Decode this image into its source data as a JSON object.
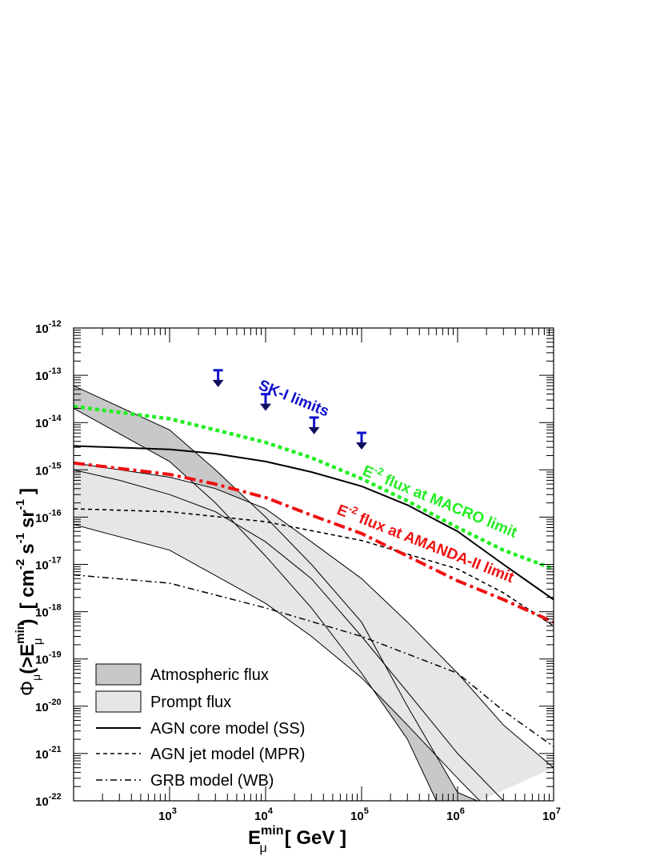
{
  "chart_data": {
    "type": "line",
    "xscale": "log",
    "yscale": "log",
    "xlim": [
      100,
      10000000
    ],
    "ylim": [
      1e-22,
      1e-12
    ],
    "xlabel": {
      "main": "E",
      "sup": "min",
      "sub": "μ",
      "unit": "[ GeV ]"
    },
    "ylabel": {
      "phi": "Φ",
      "phi_sub": "μ",
      "open": "(>E",
      "sup": "min",
      "sub": "μ",
      "close": ")",
      "units": "[ cm",
      "u_sup1": "-2",
      "s": "s",
      "u_sup2": "-1",
      "sr": "sr",
      "u_sup3": "-1",
      "end": "]"
    },
    "x_ticks": [
      {
        "base": "10",
        "exp": "3",
        "value": 1000
      },
      {
        "base": "10",
        "exp": "4",
        "value": 10000
      },
      {
        "base": "10",
        "exp": "5",
        "value": 100000
      },
      {
        "base": "10",
        "exp": "6",
        "value": 1000000
      },
      {
        "base": "10",
        "exp": "7",
        "value": 10000000
      }
    ],
    "y_ticks": [
      {
        "base": "10",
        "exp": "-12",
        "value": -12
      },
      {
        "base": "10",
        "exp": "-13",
        "value": -13
      },
      {
        "base": "10",
        "exp": "-14",
        "value": -14
      },
      {
        "base": "10",
        "exp": "-15",
        "value": -15
      },
      {
        "base": "10",
        "exp": "-16",
        "value": -16
      },
      {
        "base": "10",
        "exp": "-17",
        "value": -17
      },
      {
        "base": "10",
        "exp": "-18",
        "value": -18
      },
      {
        "base": "10",
        "exp": "-19",
        "value": -19
      },
      {
        "base": "10",
        "exp": "-20",
        "value": -20
      },
      {
        "base": "10",
        "exp": "-21",
        "value": -21
      },
      {
        "base": "10",
        "exp": "-22",
        "value": -22
      }
    ],
    "bands": [
      {
        "name": "Atmospheric flux",
        "fill": "#c8c8c8",
        "upper": [
          [
            100,
            6e-14
          ],
          [
            1000,
            7e-15
          ],
          [
            3000,
            1e-15
          ],
          [
            10000,
            1e-16
          ],
          [
            30000,
            1e-17
          ],
          [
            100000,
            6e-19
          ],
          [
            300000,
            1e-20
          ],
          [
            1000000,
            1.5e-22
          ],
          [
            1600000,
            1e-22
          ]
        ],
        "lower": [
          [
            100,
            2e-14
          ],
          [
            1000,
            1.5e-15
          ],
          [
            3000,
            2e-16
          ],
          [
            10000,
            1.5e-17
          ],
          [
            30000,
            1.2e-18
          ],
          [
            100000,
            5e-20
          ],
          [
            300000,
            2e-21
          ],
          [
            600000,
            1e-22
          ]
        ]
      },
      {
        "name": "Prompt flux",
        "fill": "#e6e6e6",
        "upper": [
          [
            100,
            1.4e-15
          ],
          [
            1000,
            7e-16
          ],
          [
            3000,
            4e-16
          ],
          [
            10000,
            1.5e-16
          ],
          [
            30000,
            3e-17
          ],
          [
            100000,
            5e-18
          ],
          [
            300000,
            6e-19
          ],
          [
            1000000,
            5e-20
          ],
          [
            3000000,
            4e-21
          ],
          [
            10000000,
            5e-22
          ]
        ],
        "lower": [
          [
            100,
            7e-17
          ],
          [
            1000,
            2e-17
          ],
          [
            10000,
            1.5e-18
          ],
          [
            30000,
            3e-19
          ],
          [
            100000,
            4e-20
          ],
          [
            300000,
            4e-21
          ],
          [
            1000000,
            3e-22
          ],
          [
            1700000,
            1e-22
          ]
        ],
        "mid": [
          [
            100,
            1e-15
          ],
          [
            300,
            6e-16
          ],
          [
            1000,
            3e-16
          ],
          [
            3000,
            1.3e-16
          ],
          [
            10000,
            3e-17
          ],
          [
            30000,
            5e-18
          ],
          [
            100000,
            3e-19
          ],
          [
            300000,
            2e-20
          ],
          [
            1000000,
            1e-21
          ],
          [
            3000000,
            1e-22
          ]
        ]
      }
    ],
    "series": [
      {
        "name": "AGN core model (SS)",
        "style": "solid",
        "color": "#000000",
        "points": [
          [
            100,
            3.2e-15
          ],
          [
            1000,
            2.7e-15
          ],
          [
            3000,
            2.2e-15
          ],
          [
            10000,
            1.5e-15
          ],
          [
            30000,
            9e-16
          ],
          [
            100000,
            4.5e-16
          ],
          [
            300000,
            1.8e-16
          ],
          [
            1000000,
            5e-17
          ],
          [
            3000000,
            1e-17
          ],
          [
            10000000,
            1.8e-18
          ]
        ]
      },
      {
        "name": "AGN jet model (MPR)",
        "style": "dashed",
        "color": "#000000",
        "points": [
          [
            100,
            1.5e-16
          ],
          [
            1000,
            1.3e-16
          ],
          [
            10000,
            8e-17
          ],
          [
            100000,
            3.2e-17
          ],
          [
            1000000,
            8e-18
          ],
          [
            3000000,
            2.5e-18
          ],
          [
            10000000,
            5e-19
          ]
        ]
      },
      {
        "name": "GRB model (WB)",
        "style": "dashdot",
        "color": "#000000",
        "points": [
          [
            100,
            6e-18
          ],
          [
            1000,
            4e-18
          ],
          [
            10000,
            1.2e-18
          ],
          [
            100000,
            3e-19
          ],
          [
            1000000,
            5e-20
          ],
          [
            3000000,
            8e-21
          ],
          [
            10000000,
            1.4e-21
          ]
        ]
      },
      {
        "name": "E-2 flux at MACRO limit",
        "style": "dotted",
        "color": "#22ee22",
        "points": [
          [
            100,
            2.2e-14
          ],
          [
            1000,
            1.2e-14
          ],
          [
            3000,
            7e-15
          ],
          [
            10000,
            3.8e-15
          ],
          [
            30000,
            1.8e-15
          ],
          [
            100000,
            6.5e-16
          ],
          [
            300000,
            2.2e-16
          ],
          [
            1000000,
            6e-17
          ],
          [
            3000000,
            2e-17
          ],
          [
            10000000,
            8e-18
          ]
        ]
      },
      {
        "name": "E-2 flux at AMANDA-II limit",
        "style": "dashdot-thick",
        "color": "#ee1111",
        "points": [
          [
            100,
            1.4e-15
          ],
          [
            1000,
            8e-16
          ],
          [
            3000,
            5e-16
          ],
          [
            10000,
            2.6e-16
          ],
          [
            30000,
            1.1e-16
          ],
          [
            100000,
            4.5e-17
          ],
          [
            300000,
            1.5e-17
          ],
          [
            1000000,
            4.5e-18
          ],
          [
            3000000,
            1.8e-18
          ],
          [
            10000000,
            6e-19
          ]
        ]
      }
    ],
    "sk_limits": {
      "label": "SK-I limits",
      "color": "#1010cc",
      "points": [
        [
          3200,
          8e-14
        ],
        [
          10000,
          2.5e-14
        ],
        [
          32000,
          8e-15
        ],
        [
          100000,
          3.8e-15
        ]
      ]
    },
    "annotations": [
      {
        "text": "SK-I limits",
        "color": "#1010cc"
      },
      {
        "text_pre": "E",
        "text_sup": "-2",
        "text_post": " flux at MACRO limit",
        "color": "#22ee22"
      },
      {
        "text_pre": "E",
        "text_sup": "-2",
        "text_post": " flux at AMANDA-II limit",
        "color": "#ee1111"
      }
    ],
    "legend": {
      "placement": "bottom-left",
      "entries": [
        {
          "label": "Atmospheric flux",
          "kind": "box",
          "fill": "#c8c8c8"
        },
        {
          "label": "Prompt flux",
          "kind": "box",
          "fill": "#e6e6e6"
        },
        {
          "label": "AGN core model (SS)",
          "kind": "line",
          "style": "solid"
        },
        {
          "label": "AGN jet model (MPR)",
          "kind": "line",
          "style": "dashed"
        },
        {
          "label": "GRB model (WB)",
          "kind": "line",
          "style": "dashdot"
        }
      ]
    }
  }
}
